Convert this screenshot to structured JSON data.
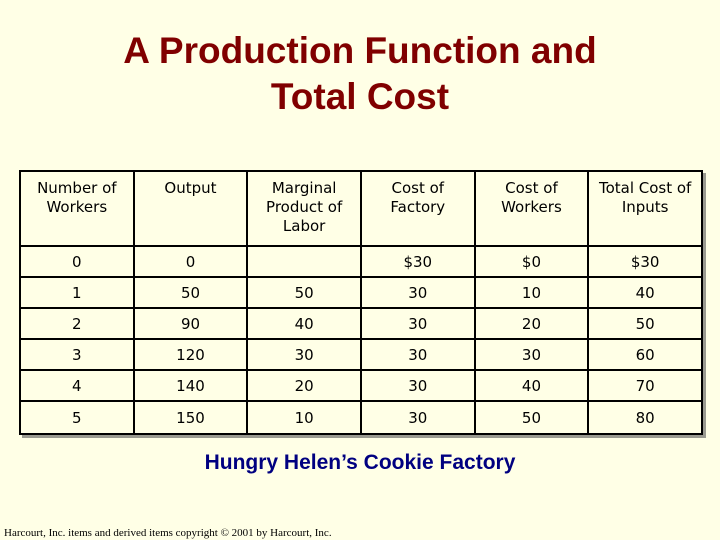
{
  "title": {
    "line1": "A Production Function and",
    "line2": "Total Cost"
  },
  "table": {
    "headers": [
      "Number of\nWorkers",
      "Output",
      "Marginal\nProduct of\nLabor",
      "Cost of\nFactory",
      "Cost of\nWorkers",
      "Total Cost of\nInputs"
    ],
    "rows": [
      [
        "0",
        "0",
        "",
        "$30",
        "$0",
        "$30"
      ],
      [
        "1",
        "50",
        "50",
        "30",
        "10",
        "40"
      ],
      [
        "2",
        "90",
        "40",
        "30",
        "20",
        "50"
      ],
      [
        "3",
        "120",
        "30",
        "30",
        "30",
        "60"
      ],
      [
        "4",
        "140",
        "20",
        "30",
        "40",
        "70"
      ],
      [
        "5",
        "150",
        "10",
        "30",
        "50",
        "80"
      ]
    ]
  },
  "subtitle": "Hungry Helen’s Cookie Factory",
  "copyright": "Harcourt, Inc. items and derived items copyright © 2001 by Harcourt, Inc."
}
